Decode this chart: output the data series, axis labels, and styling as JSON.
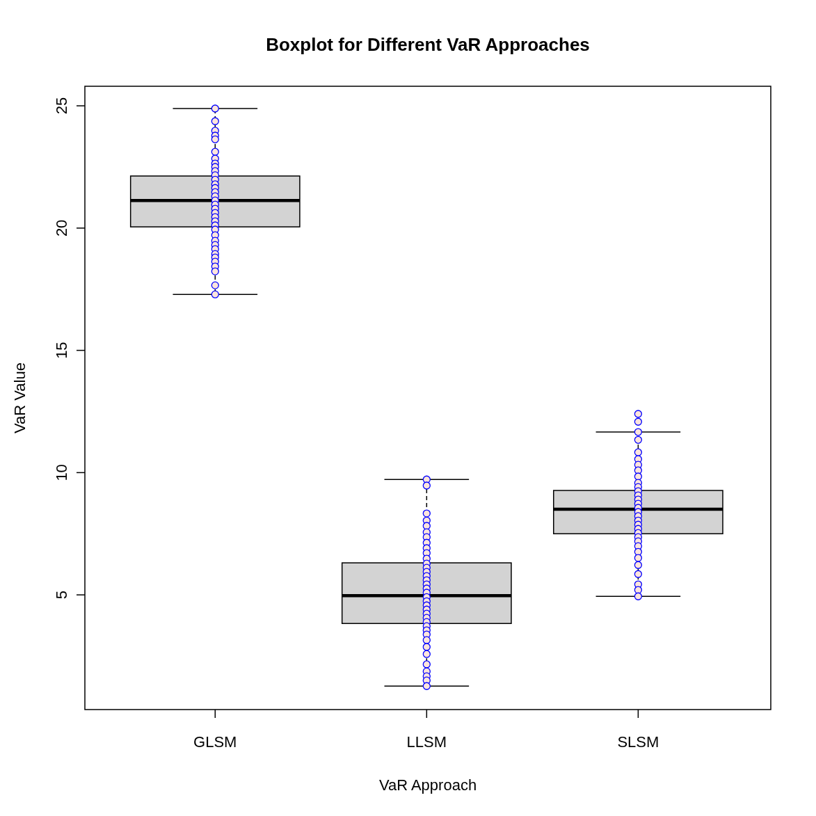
{
  "chart_data": {
    "type": "box",
    "title": "Boxplot for Different VaR Approaches",
    "xlabel": "VaR Approach",
    "ylabel": "VaR Value",
    "categories": [
      "GLSM",
      "LLSM",
      "SLSM"
    ],
    "color": "#d3d3d3",
    "boxes": [
      {
        "low": 17.29,
        "q1": 20.05,
        "median": 21.13,
        "q3": 22.13,
        "high": 24.89
      },
      {
        "low": 1.27,
        "q1": 3.83,
        "median": 4.97,
        "q3": 6.31,
        "high": 9.72
      },
      {
        "low": 4.94,
        "q1": 7.5,
        "median": 8.5,
        "q3": 9.27,
        "high": 11.66
      }
    ],
    "series": [
      {
        "type": "scatter",
        "color": "#0000ff",
        "x": [
          "GLSM",
          "GLSM",
          "GLSM",
          "GLSM",
          "GLSM",
          "GLSM",
          "GLSM",
          "GLSM",
          "GLSM",
          "GLSM",
          "GLSM",
          "GLSM",
          "GLSM",
          "GLSM",
          "GLSM",
          "GLSM",
          "GLSM",
          "GLSM",
          "GLSM",
          "GLSM",
          "GLSM",
          "GLSM",
          "GLSM",
          "GLSM",
          "GLSM",
          "GLSM",
          "GLSM",
          "GLSM",
          "GLSM",
          "GLSM",
          "GLSM",
          "GLSM",
          "GLSM",
          "GLSM",
          "GLSM"
        ],
        "values": [
          24.89,
          24.37,
          23.98,
          23.78,
          23.63,
          23.12,
          22.84,
          22.64,
          22.5,
          22.33,
          22.16,
          21.98,
          21.79,
          21.64,
          21.47,
          21.3,
          21.13,
          20.96,
          20.79,
          20.62,
          20.45,
          20.28,
          20.11,
          19.94,
          19.71,
          19.48,
          19.31,
          19.14,
          18.94,
          18.8,
          18.63,
          18.43,
          18.23,
          17.66,
          17.29
        ]
      },
      {
        "type": "scatter",
        "color": "#0000ff",
        "x": [
          "LLSM",
          "LLSM",
          "LLSM",
          "LLSM",
          "LLSM",
          "LLSM",
          "LLSM",
          "LLSM",
          "LLSM",
          "LLSM",
          "LLSM",
          "LLSM",
          "LLSM",
          "LLSM",
          "LLSM",
          "LLSM",
          "LLSM",
          "LLSM",
          "LLSM",
          "LLSM",
          "LLSM",
          "LLSM",
          "LLSM",
          "LLSM",
          "LLSM",
          "LLSM",
          "LLSM",
          "LLSM",
          "LLSM",
          "LLSM",
          "LLSM",
          "LLSM",
          "LLSM",
          "LLSM",
          "LLSM",
          "LLSM",
          "LLSM"
        ],
        "values": [
          9.72,
          9.47,
          8.33,
          8.04,
          7.82,
          7.56,
          7.36,
          7.13,
          6.91,
          6.71,
          6.48,
          6.28,
          6.11,
          5.94,
          5.77,
          5.6,
          5.43,
          5.26,
          5.09,
          4.91,
          4.74,
          4.57,
          4.4,
          4.23,
          4.06,
          3.89,
          3.72,
          3.55,
          3.38,
          3.15,
          2.87,
          2.58,
          2.16,
          1.87,
          1.67,
          1.5,
          1.27
        ]
      },
      {
        "type": "scatter",
        "color": "#0000ff",
        "x": [
          "SLSM",
          "SLSM",
          "SLSM",
          "SLSM",
          "SLSM",
          "SLSM",
          "SLSM",
          "SLSM",
          "SLSM",
          "SLSM",
          "SLSM",
          "SLSM",
          "SLSM",
          "SLSM",
          "SLSM",
          "SLSM",
          "SLSM",
          "SLSM",
          "SLSM",
          "SLSM",
          "SLSM",
          "SLSM",
          "SLSM",
          "SLSM",
          "SLSM",
          "SLSM",
          "SLSM",
          "SLSM",
          "SLSM",
          "SLSM",
          "SLSM",
          "SLSM"
        ],
        "values": [
          12.4,
          12.08,
          11.66,
          11.34,
          10.83,
          10.55,
          10.32,
          10.09,
          9.84,
          9.58,
          9.41,
          9.24,
          9.07,
          8.9,
          8.73,
          8.56,
          8.39,
          8.22,
          8.04,
          7.87,
          7.7,
          7.53,
          7.36,
          7.19,
          6.99,
          6.76,
          6.51,
          6.22,
          5.85,
          5.43,
          5.2,
          4.94
        ]
      }
    ],
    "marker": "circle",
    "ylim": [
      0.31,
      25.8
    ],
    "yticks": [
      5,
      10,
      15,
      20,
      25
    ],
    "grid": false
  }
}
